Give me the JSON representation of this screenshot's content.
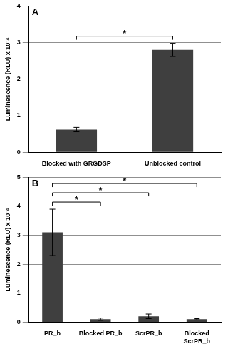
{
  "chart_data": [
    {
      "type": "bar",
      "title": "A",
      "y_label": "Luminescence (RLU) x 10⁻⁴",
      "categories": [
        "Blocked with GRGDSP",
        "Unblocked control"
      ],
      "values": [
        0.62,
        2.8
      ],
      "errors": [
        0.06,
        0.18
      ],
      "color": "#3f3f3f",
      "ylim": [
        0,
        4
      ],
      "yticks": [
        0,
        1,
        2,
        3,
        4
      ],
      "grid": true,
      "annotations": [
        {
          "text": "*",
          "from": 0,
          "to": 1
        }
      ]
    },
    {
      "type": "bar",
      "title": "B",
      "y_label": "Luminescence (RLU) x 10⁻⁴",
      "categories": [
        "PR_b",
        "Blocked PR_b",
        "ScrPR_b",
        "Blocked ScrPR_b"
      ],
      "values": [
        3.1,
        0.1,
        0.2,
        0.1
      ],
      "errors": [
        0.8,
        0.04,
        0.08,
        0.02
      ],
      "color": "#3f3f3f",
      "ylim": [
        0,
        5
      ],
      "yticks": [
        0,
        1,
        2,
        3,
        4,
        5
      ],
      "grid": true,
      "annotations": [
        {
          "text": "*",
          "from": 0,
          "to": 1
        },
        {
          "text": "*",
          "from": 0,
          "to": 2
        },
        {
          "text": "*",
          "from": 0,
          "to": 3
        }
      ]
    }
  ]
}
